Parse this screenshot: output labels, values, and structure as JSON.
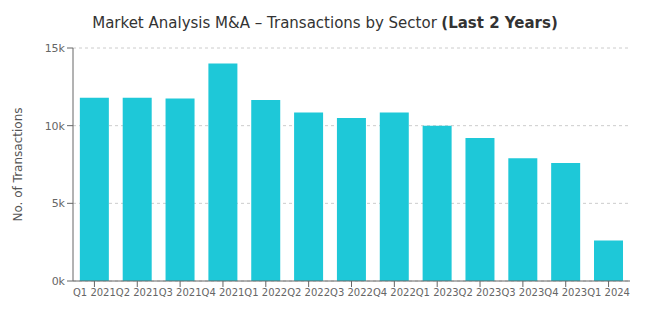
{
  "chart_data": {
    "type": "bar",
    "title": "Market Analysis M&A – Transactions by Sector",
    "subtitle": "(Last 2 Years)",
    "categories": [
      "Q1 2021",
      "Q2 2021",
      "Q3 2021",
      "Q4 2021",
      "Q1 2022",
      "Q2 2022",
      "Q3 2022",
      "Q4 2022",
      "Q1 2023",
      "Q2 2023",
      "Q3 2023",
      "Q4 2023",
      "Q1 2024"
    ],
    "values": [
      11800,
      11800,
      11750,
      14000,
      11650,
      10850,
      10500,
      10850,
      10000,
      9200,
      7900,
      7600,
      2600
    ],
    "color": "#1ec8d8",
    "ylabel": "No. of Transactions",
    "ylim": [
      0,
      15000
    ],
    "yticks": [
      {
        "value": 0,
        "label": "0k"
      },
      {
        "value": 5000,
        "label": "5k"
      },
      {
        "value": 10000,
        "label": "10k"
      },
      {
        "value": 15000,
        "label": "15k"
      }
    ],
    "grid": true
  }
}
